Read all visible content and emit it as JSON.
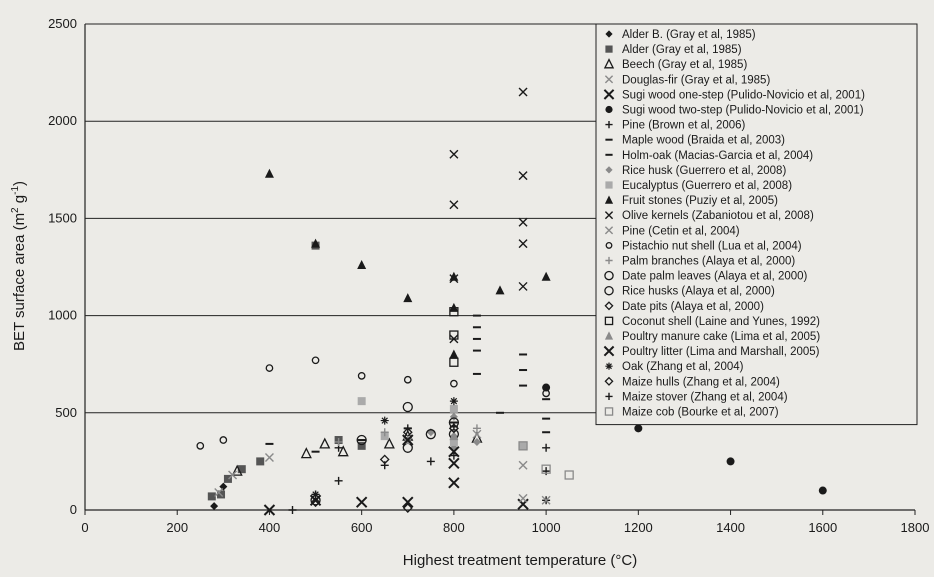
{
  "chart_data": {
    "type": "scatter",
    "title": "",
    "xlabel": "Highest treatment temperature (°C)",
    "ylabel": "BET surface area (m2 g-1)",
    "xlim": [
      0,
      1800
    ],
    "ylim": [
      0,
      2500
    ],
    "xticks": [
      0,
      200,
      400,
      600,
      800,
      1000,
      1200,
      1400,
      1600,
      1800
    ],
    "yticks": [
      0,
      500,
      1000,
      1500,
      2000,
      2500
    ],
    "grid": "horizontal",
    "legend_position": "top-right",
    "series": [
      {
        "name": "Alder B. (Gray et al, 1985)",
        "marker": "diamond-filled",
        "color": "#1a1a1a",
        "points": [
          [
            280,
            20
          ],
          [
            300,
            120
          ]
        ]
      },
      {
        "name": "Alder (Gray et al, 1985)",
        "marker": "square-filled",
        "color": "#555555",
        "points": [
          [
            275,
            70
          ],
          [
            295,
            80
          ],
          [
            310,
            160
          ],
          [
            340,
            210
          ],
          [
            380,
            250
          ],
          [
            500,
            1360
          ],
          [
            550,
            360
          ],
          [
            600,
            330
          ]
        ]
      },
      {
        "name": "Beech (Gray et al, 1985)",
        "marker": "triangle-open",
        "color": "#1a1a1a",
        "points": [
          [
            330,
            200
          ],
          [
            480,
            290
          ],
          [
            520,
            340
          ],
          [
            560,
            300
          ],
          [
            660,
            340
          ],
          [
            700,
            380
          ],
          [
            850,
            370
          ]
        ]
      },
      {
        "name": "Douglas-fir (Gray et al, 1985)",
        "marker": "x",
        "color": "#8a8a8a",
        "points": [
          [
            290,
            90
          ],
          [
            320,
            180
          ],
          [
            400,
            270
          ],
          [
            700,
            350
          ],
          [
            850,
            390
          ],
          [
            950,
            230
          ]
        ]
      },
      {
        "name": "Sugi wood one-step (Pulido-Novicio et al, 2001)",
        "marker": "bigx",
        "color": "#1a1a1a",
        "points": [
          [
            400,
            0
          ],
          [
            500,
            50
          ],
          [
            600,
            40
          ],
          [
            700,
            40
          ],
          [
            800,
            140
          ],
          [
            950,
            30
          ]
        ]
      },
      {
        "name": "Sugi wood two-step (Pulido-Novicio et al, 2001)",
        "marker": "circle-filled",
        "color": "#1a1a1a",
        "points": [
          [
            1000,
            630
          ],
          [
            1200,
            420
          ],
          [
            1400,
            250
          ],
          [
            1600,
            100
          ]
        ]
      },
      {
        "name": "Pine (Brown et al, 2006)",
        "marker": "plus",
        "color": "#1a1a1a",
        "points": [
          [
            450,
            0
          ],
          [
            500,
            80
          ],
          [
            550,
            320
          ],
          [
            700,
            420
          ],
          [
            800,
            430
          ],
          [
            1000,
            50
          ],
          [
            1000,
            200
          ],
          [
            1000,
            320
          ]
        ]
      },
      {
        "name": "Maple wood (Braida et al, 2003)",
        "marker": "dash",
        "color": "#1a1a1a",
        "points": [
          [
            400,
            340
          ],
          [
            500,
            300
          ],
          [
            600,
            360
          ],
          [
            700,
            420
          ],
          [
            800,
            450
          ],
          [
            900,
            500
          ]
        ]
      },
      {
        "name": "Holm-oak (Macias-Garcia et al, 2004)",
        "marker": "dash",
        "color": "#1a1a1a",
        "points": [
          [
            850,
            1000
          ],
          [
            850,
            940
          ],
          [
            850,
            880
          ],
          [
            850,
            820
          ],
          [
            850,
            700
          ],
          [
            950,
            800
          ],
          [
            950,
            720
          ],
          [
            950,
            640
          ],
          [
            1000,
            570
          ],
          [
            1000,
            470
          ],
          [
            1000,
            400
          ]
        ]
      },
      {
        "name": "Rice husk (Guerrero et al, 2008)",
        "marker": "diamond-filled",
        "color": "#8a8a8a",
        "points": [
          [
            750,
            400
          ],
          [
            800,
            480
          ],
          [
            800,
            380
          ],
          [
            800,
            320
          ],
          [
            850,
            350
          ]
        ]
      },
      {
        "name": "Eucalyptus (Guerrero et al, 2008)",
        "marker": "square-filled",
        "color": "#aaaaaa",
        "points": [
          [
            600,
            560
          ],
          [
            650,
            380
          ],
          [
            800,
            350
          ],
          [
            800,
            520
          ],
          [
            950,
            330
          ]
        ]
      },
      {
        "name": "Fruit stones (Puziy et al, 2005)",
        "marker": "triangle-filled",
        "color": "#1a1a1a",
        "points": [
          [
            400,
            1730
          ],
          [
            500,
            1370
          ],
          [
            600,
            1260
          ],
          [
            700,
            1090
          ],
          [
            800,
            1200
          ],
          [
            800,
            800
          ],
          [
            800,
            1040
          ],
          [
            900,
            1130
          ],
          [
            1000,
            1200
          ]
        ]
      },
      {
        "name": "Olive kernels (Zabaniotou et al, 2008)",
        "marker": "x",
        "color": "#1a1a1a",
        "points": [
          [
            800,
            1830
          ],
          [
            800,
            1570
          ],
          [
            800,
            1190
          ],
          [
            800,
            880
          ],
          [
            950,
            2150
          ],
          [
            950,
            1720
          ],
          [
            950,
            1480
          ],
          [
            950,
            1370
          ],
          [
            950,
            1150
          ]
        ]
      },
      {
        "name": "Pine (Cetin et al, 2004)",
        "marker": "x",
        "color": "#8a8a8a",
        "points": [
          [
            950,
            60
          ],
          [
            1000,
            50
          ]
        ]
      },
      {
        "name": "Pistachio nut shell (Lua et al, 2004)",
        "marker": "circle-open-small",
        "color": "#1a1a1a",
        "points": [
          [
            250,
            330
          ],
          [
            300,
            360
          ],
          [
            400,
            730
          ],
          [
            500,
            770
          ],
          [
            600,
            690
          ],
          [
            700,
            670
          ],
          [
            800,
            650
          ],
          [
            1000,
            600
          ]
        ]
      },
      {
        "name": "Palm branches (Alaya et al, 2000)",
        "marker": "plus",
        "color": "#8a8a8a",
        "points": [
          [
            550,
            350
          ],
          [
            650,
            400
          ],
          [
            850,
            420
          ]
        ]
      },
      {
        "name": "Date palm leaves (Alaya et al, 2000)",
        "marker": "circle-open",
        "color": "#1a1a1a",
        "points": [
          [
            700,
            530
          ],
          [
            750,
            390
          ],
          [
            800,
            450
          ]
        ]
      },
      {
        "name": "Rice husks (Alaya et al, 2000)",
        "marker": "circle-open",
        "color": "#1a1a1a",
        "points": [
          [
            500,
            50
          ],
          [
            600,
            360
          ],
          [
            700,
            320
          ],
          [
            800,
            390
          ]
        ]
      },
      {
        "name": "Date pits (Alaya et al, 2000)",
        "marker": "diamond-open",
        "color": "#1a1a1a",
        "points": [
          [
            650,
            260
          ],
          [
            700,
            400
          ],
          [
            800,
            420
          ]
        ]
      },
      {
        "name": "Coconut shell (Laine and Yunes, 1992)",
        "marker": "square-open",
        "color": "#1a1a1a",
        "points": [
          [
            800,
            1020
          ],
          [
            800,
            900
          ],
          [
            800,
            760
          ]
        ]
      },
      {
        "name": "Poultry manure cake (Lima et al, 2005)",
        "marker": "triangle-filled",
        "color": "#8a8a8a",
        "points": [
          [
            700,
            360
          ],
          [
            800,
            380
          ]
        ]
      },
      {
        "name": "Poultry litter (Lima and Marshall, 2005)",
        "marker": "bigx",
        "color": "#1a1a1a",
        "points": [
          [
            700,
            360
          ],
          [
            800,
            300
          ],
          [
            800,
            240
          ]
        ]
      },
      {
        "name": "Oak (Zhang et al, 2004)",
        "marker": "asterisk",
        "color": "#1a1a1a",
        "points": [
          [
            500,
            80
          ],
          [
            650,
            460
          ],
          [
            800,
            560
          ]
        ]
      },
      {
        "name": "Maize hulls (Zhang et al, 2004)",
        "marker": "diamond-open",
        "color": "#1a1a1a",
        "points": [
          [
            500,
            40
          ],
          [
            700,
            10
          ],
          [
            800,
            420
          ]
        ]
      },
      {
        "name": "Maize stover (Zhang et al, 2004)",
        "marker": "plus",
        "color": "#1a1a1a",
        "points": [
          [
            550,
            150
          ],
          [
            650,
            230
          ],
          [
            750,
            250
          ],
          [
            800,
            280
          ]
        ]
      },
      {
        "name": "Maize cob (Bourke et al, 2007)",
        "marker": "square-open",
        "color": "#8a8a8a",
        "points": [
          [
            950,
            330
          ],
          [
            1000,
            210
          ],
          [
            1050,
            180
          ]
        ]
      }
    ]
  }
}
